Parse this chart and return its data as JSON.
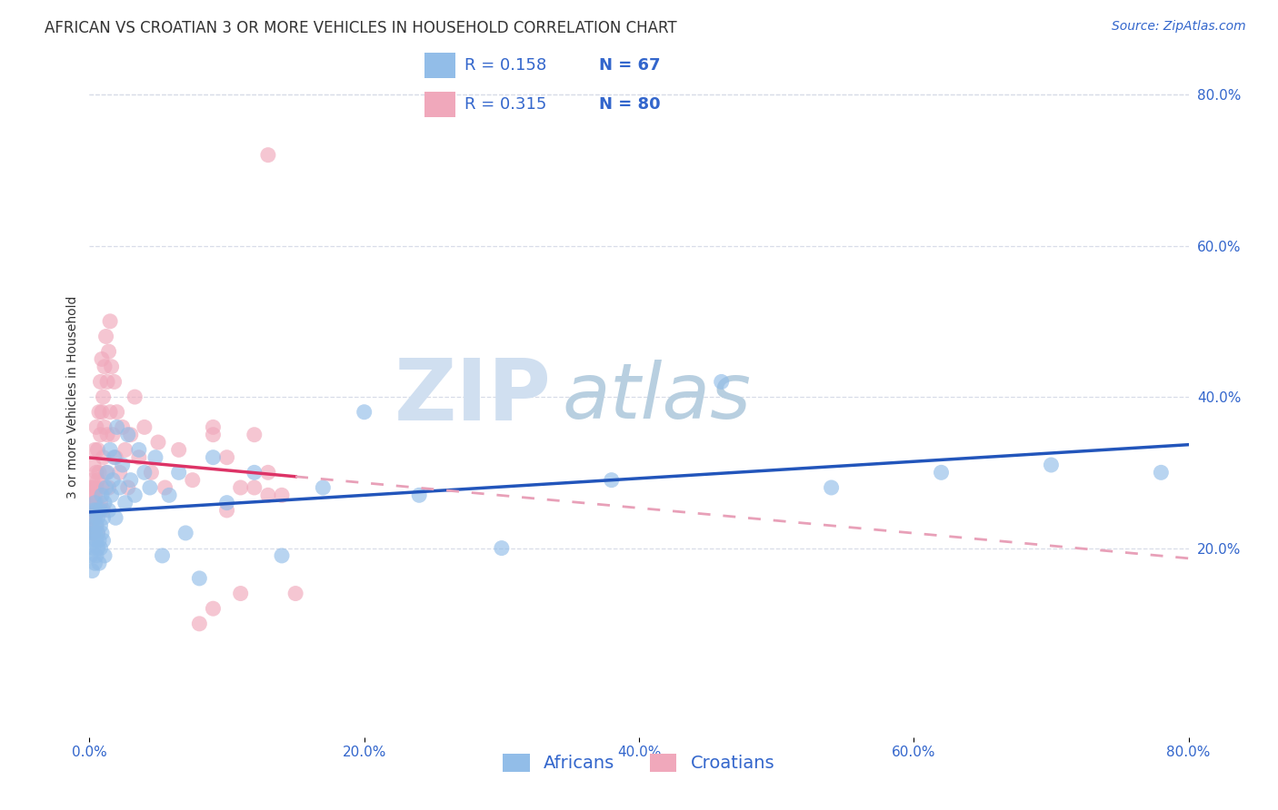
{
  "title": "AFRICAN VS CROATIAN 3 OR MORE VEHICLES IN HOUSEHOLD CORRELATION CHART",
  "source": "Source: ZipAtlas.com",
  "ylabel": "3 or more Vehicles in Household",
  "xlim": [
    0.0,
    0.8
  ],
  "ylim": [
    -0.05,
    0.85
  ],
  "african_R": 0.158,
  "african_N": 67,
  "croatian_R": 0.315,
  "croatian_N": 80,
  "african_color": "#92bde8",
  "croatian_color": "#f0a8bb",
  "trendline_african_color": "#2255bb",
  "trendline_croatian_color": "#dd3366",
  "trendline_croatian_ext_color": "#e8a0b8",
  "watermark_zip": "ZIP",
  "watermark_atlas": "atlas",
  "watermark_color_zip": "#c5d5e8",
  "watermark_color_atlas": "#a8c4d8",
  "background_color": "#ffffff",
  "grid_color": "#d8dde8",
  "legend_text_color": "#3366cc",
  "tick_color": "#3366cc",
  "title_color": "#333333",
  "african_x": [
    0.001,
    0.001,
    0.002,
    0.002,
    0.002,
    0.003,
    0.003,
    0.003,
    0.004,
    0.004,
    0.004,
    0.005,
    0.005,
    0.005,
    0.005,
    0.006,
    0.006,
    0.006,
    0.007,
    0.007,
    0.008,
    0.008,
    0.008,
    0.009,
    0.009,
    0.01,
    0.01,
    0.011,
    0.011,
    0.012,
    0.013,
    0.014,
    0.015,
    0.016,
    0.017,
    0.018,
    0.019,
    0.02,
    0.022,
    0.024,
    0.026,
    0.028,
    0.03,
    0.033,
    0.036,
    0.04,
    0.044,
    0.048,
    0.053,
    0.058,
    0.065,
    0.07,
    0.08,
    0.09,
    0.1,
    0.12,
    0.14,
    0.17,
    0.2,
    0.24,
    0.3,
    0.38,
    0.46,
    0.54,
    0.62,
    0.7,
    0.78
  ],
  "african_y": [
    0.22,
    0.19,
    0.23,
    0.21,
    0.17,
    0.24,
    0.2,
    0.25,
    0.22,
    0.18,
    0.26,
    0.21,
    0.23,
    0.19,
    0.25,
    0.2,
    0.24,
    0.22,
    0.21,
    0.18,
    0.25,
    0.23,
    0.2,
    0.22,
    0.27,
    0.24,
    0.21,
    0.26,
    0.19,
    0.28,
    0.3,
    0.25,
    0.33,
    0.27,
    0.29,
    0.32,
    0.24,
    0.36,
    0.28,
    0.31,
    0.26,
    0.35,
    0.29,
    0.27,
    0.33,
    0.3,
    0.28,
    0.32,
    0.19,
    0.27,
    0.3,
    0.22,
    0.16,
    0.32,
    0.26,
    0.3,
    0.19,
    0.28,
    0.38,
    0.27,
    0.2,
    0.29,
    0.42,
    0.28,
    0.3,
    0.31,
    0.3
  ],
  "croatian_x": [
    0.001,
    0.001,
    0.001,
    0.002,
    0.002,
    0.002,
    0.002,
    0.003,
    0.003,
    0.003,
    0.003,
    0.003,
    0.004,
    0.004,
    0.004,
    0.004,
    0.005,
    0.005,
    0.005,
    0.005,
    0.005,
    0.006,
    0.006,
    0.006,
    0.006,
    0.007,
    0.007,
    0.007,
    0.008,
    0.008,
    0.008,
    0.009,
    0.009,
    0.009,
    0.01,
    0.01,
    0.01,
    0.011,
    0.011,
    0.012,
    0.012,
    0.013,
    0.013,
    0.014,
    0.014,
    0.015,
    0.015,
    0.016,
    0.017,
    0.018,
    0.019,
    0.02,
    0.022,
    0.024,
    0.026,
    0.028,
    0.03,
    0.033,
    0.036,
    0.04,
    0.045,
    0.05,
    0.055,
    0.065,
    0.075,
    0.09,
    0.1,
    0.11,
    0.12,
    0.13,
    0.14,
    0.15,
    0.13,
    0.12,
    0.11,
    0.1,
    0.09,
    0.09,
    0.08,
    0.13
  ],
  "croatian_y": [
    0.26,
    0.23,
    0.28,
    0.25,
    0.22,
    0.29,
    0.27,
    0.24,
    0.31,
    0.26,
    0.22,
    0.28,
    0.25,
    0.33,
    0.27,
    0.24,
    0.3,
    0.26,
    0.23,
    0.36,
    0.28,
    0.33,
    0.25,
    0.29,
    0.22,
    0.38,
    0.3,
    0.25,
    0.42,
    0.35,
    0.26,
    0.45,
    0.38,
    0.28,
    0.4,
    0.32,
    0.25,
    0.44,
    0.36,
    0.48,
    0.3,
    0.42,
    0.35,
    0.46,
    0.28,
    0.5,
    0.38,
    0.44,
    0.35,
    0.42,
    0.32,
    0.38,
    0.3,
    0.36,
    0.33,
    0.28,
    0.35,
    0.4,
    0.32,
    0.36,
    0.3,
    0.34,
    0.28,
    0.33,
    0.29,
    0.36,
    0.32,
    0.28,
    0.35,
    0.3,
    0.27,
    0.14,
    0.27,
    0.28,
    0.14,
    0.25,
    0.12,
    0.35,
    0.1,
    0.72
  ],
  "title_fontsize": 12,
  "axis_label_fontsize": 10,
  "tick_fontsize": 11,
  "legend_fontsize": 14,
  "source_fontsize": 10
}
